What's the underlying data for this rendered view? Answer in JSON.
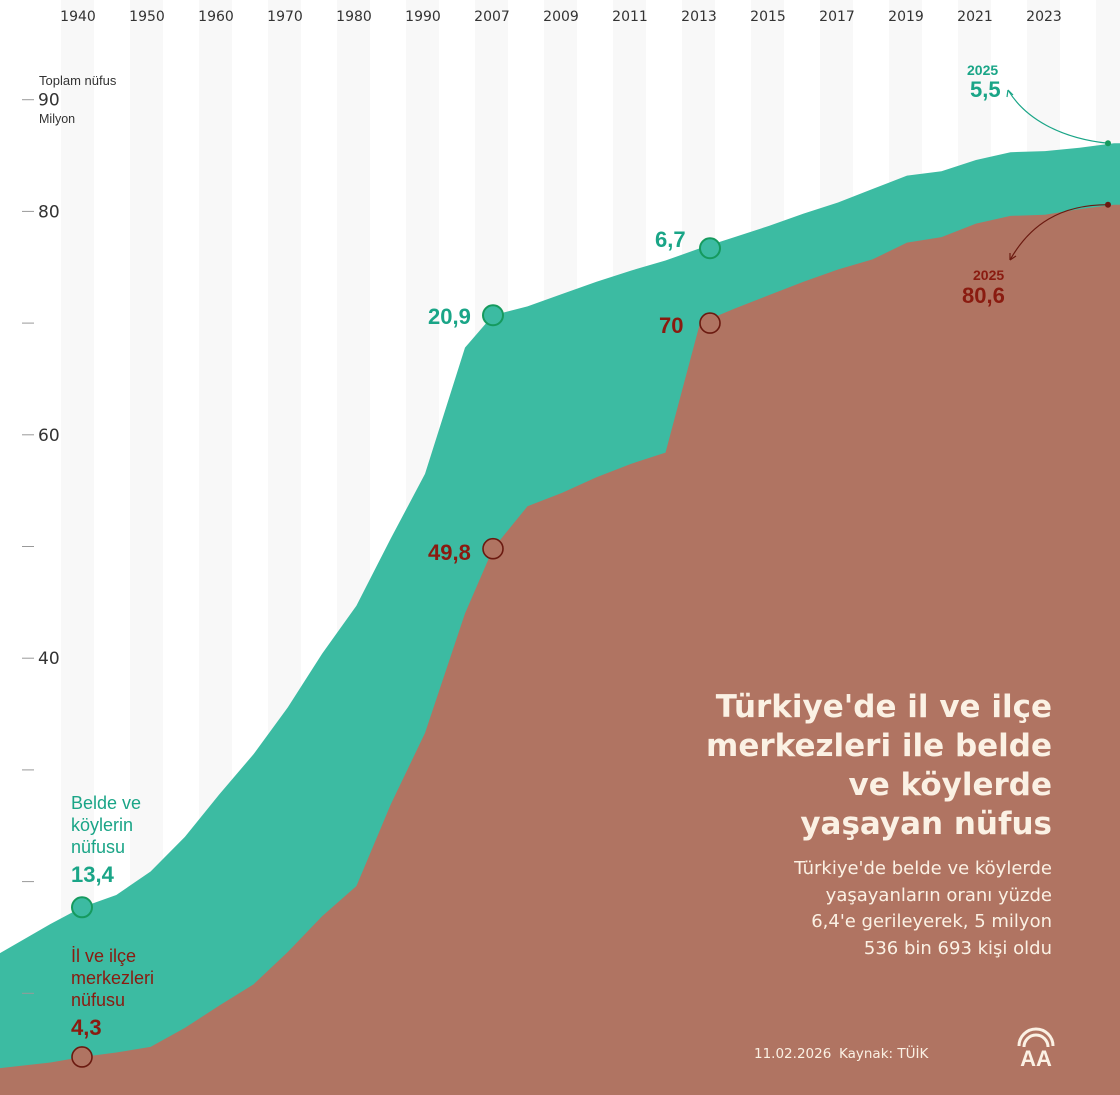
{
  "title_lines": [
    "Türkiye'de il ve ilçe",
    "merkezleri ile belde",
    "ve köylerde",
    "yaşayan nüfus"
  ],
  "subtitle_lines": [
    "Türkiye'de belde ve köylerde",
    "yaşayanların oranı yüzde",
    "6,4'e gerileyerek, 5 milyon",
    "536 bin 693 kişi oldu"
  ],
  "footer": {
    "date": "11.02.2026",
    "source": "Kaynak: TÜİK",
    "logo_text": "AA"
  },
  "colors": {
    "rural": "#3cbba2",
    "urban": "#b07462",
    "rural_text": "#1aa587",
    "urban_text": "#8a1b10",
    "stripe": "#f8f8f8"
  },
  "chart_data": {
    "type": "area",
    "stacked": true,
    "ylabel": "Toplam nüfus",
    "yunit": "Milyon",
    "ylim": [
      0,
      95
    ],
    "y_ticks": [
      10,
      20,
      30,
      40,
      50,
      60,
      70,
      80,
      90
    ],
    "y_tick_labels": {
      "40": "40",
      "60": "60",
      "80": "80",
      "90": "90"
    },
    "x_tick_labels": [
      "1940",
      "1950",
      "1960",
      "1970",
      "1980",
      "1990",
      "2007",
      "2009",
      "2011",
      "2013",
      "2015",
      "2017",
      "2019",
      "2021",
      "2023"
    ],
    "x": [
      1927,
      1935,
      1940,
      1945,
      1950,
      1955,
      1960,
      1965,
      1970,
      1975,
      1980,
      1985,
      1990,
      2000,
      2007,
      2008,
      2009,
      2010,
      2011,
      2012,
      2013,
      2014,
      2015,
      2016,
      2017,
      2018,
      2019,
      2020,
      2021,
      2022,
      2023,
      2024,
      2025
    ],
    "series": [
      {
        "name": "İl ve ilçe merkezleri nüfusu",
        "key": "urban",
        "values": [
          3.3,
          3.8,
          4.3,
          4.7,
          5.2,
          6.9,
          8.9,
          10.8,
          13.7,
          16.9,
          19.6,
          26.9,
          33.3,
          44.0,
          49.8,
          53.6,
          54.8,
          56.2,
          57.4,
          58.4,
          70.0,
          71.3,
          72.5,
          73.7,
          74.8,
          75.7,
          77.2,
          77.7,
          78.9,
          79.6,
          79.7,
          80.2,
          80.6
        ]
      },
      {
        "name": "Belde ve köylerin nüfusu",
        "key": "rural",
        "values": [
          10.3,
          12.4,
          13.4,
          14.1,
          15.7,
          17.1,
          18.9,
          20.6,
          21.9,
          23.5,
          25.1,
          23.8,
          23.2,
          23.8,
          20.9,
          17.9,
          17.8,
          17.5,
          17.3,
          17.2,
          6.7,
          6.4,
          6.2,
          6.1,
          6.0,
          6.3,
          6.0,
          5.9,
          5.7,
          5.7,
          5.7,
          5.5,
          5.5
        ]
      }
    ],
    "annotations": [
      {
        "year": 1940,
        "series": "rural",
        "value": "13,4",
        "label_lines": [
          "Belde ve",
          "köylerin",
          "nüfusu"
        ]
      },
      {
        "year": 1940,
        "series": "urban",
        "value": "4,3",
        "label_lines": [
          "İl ve ilçe",
          "merkezleri",
          "nüfusu"
        ]
      },
      {
        "year": 2007,
        "series": "rural",
        "value": "20,9"
      },
      {
        "year": 2007,
        "series": "urban",
        "value": "49,8"
      },
      {
        "year": 2013,
        "series": "rural",
        "value": "6,7"
      },
      {
        "year": 2013,
        "series": "urban",
        "value": "70"
      },
      {
        "year": 2025,
        "series": "rural",
        "value": "5,5",
        "year_label": "2025"
      },
      {
        "year": 2025,
        "series": "urban",
        "value": "80,6",
        "year_label": "2025"
      }
    ]
  }
}
